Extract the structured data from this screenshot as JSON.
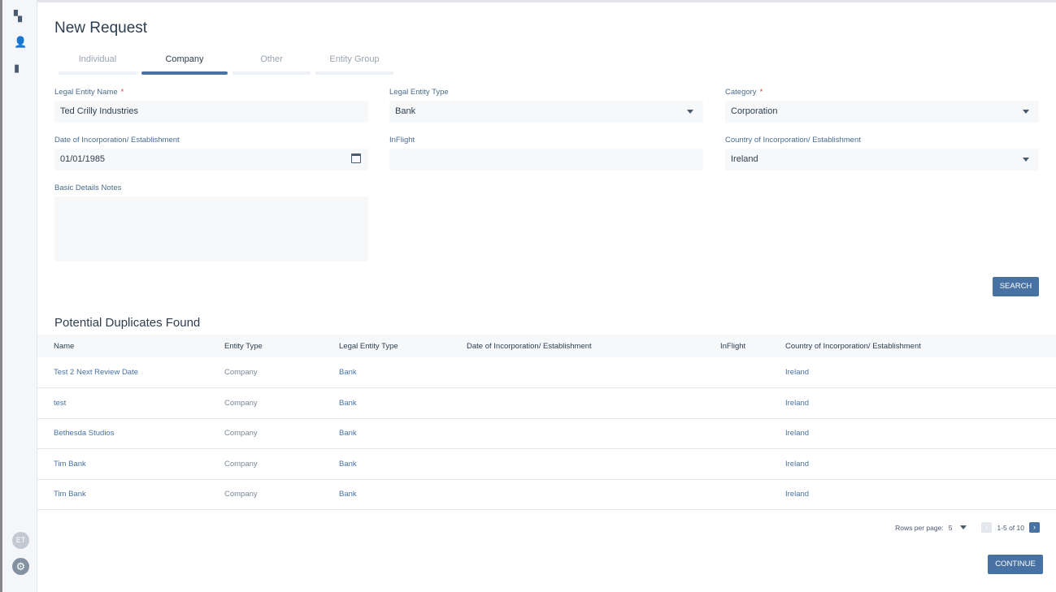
{
  "sidebar": {
    "items": [
      {
        "icon": "dashboard-icon",
        "glyph": "▚"
      },
      {
        "icon": "user-icon",
        "glyph": "👤"
      },
      {
        "icon": "bar-chart-icon",
        "glyph": "▮"
      }
    ],
    "avatar": "ET"
  },
  "title": "New Request",
  "tabs": [
    {
      "label": "Individual",
      "active": false
    },
    {
      "label": "Company",
      "active": true
    },
    {
      "label": "Other",
      "active": false
    },
    {
      "label": "Entity Group",
      "active": false
    }
  ],
  "form": {
    "legal_entity_name": {
      "label": "Legal Entity Name",
      "value": "Ted Crilly Industries",
      "required": "*"
    },
    "legal_entity_type": {
      "label": "Legal Entity Type",
      "value": "Bank"
    },
    "category": {
      "label": "Category",
      "value": "Corporation",
      "required": "*"
    },
    "date_of_incorporation": {
      "label": "Date of Incorporation/ Establishment",
      "value": "01/01/1985"
    },
    "inflight": {
      "label": "InFlight",
      "value": ""
    },
    "country": {
      "label": "Country of Incorporation/ Establishment",
      "value": "Ireland"
    },
    "notes": {
      "label": "Basic Details Notes",
      "value": ""
    }
  },
  "search_label": "SEARCH",
  "duplicates": {
    "title": "Potential Duplicates Found",
    "columns": [
      "Name",
      "Entity Type",
      "Legal Entity Type",
      "Date of Incorporation/ Establishment",
      "InFlight",
      "Country of Incorporation/ Establishment"
    ],
    "rows": [
      [
        "Test 2 Next Review Date",
        "Company",
        "Bank",
        "",
        "",
        "Ireland"
      ],
      [
        "test",
        "Company",
        "Bank",
        "",
        "",
        "Ireland"
      ],
      [
        "Bethesda Studios",
        "Company",
        "Bank",
        "",
        "",
        "Ireland"
      ],
      [
        "Tim Bank",
        "Company",
        "Bank",
        "",
        "",
        "Ireland"
      ],
      [
        "Tim Bank",
        "Company",
        "Bank",
        "",
        "",
        "Ireland"
      ]
    ]
  },
  "pagination": {
    "rows_per_page_label": "Rows per page:",
    "rows_per_page": "5",
    "range": "1-5 of 10"
  },
  "continue_label": "CONTINUE",
  "colors": {
    "accent": "#4872a3"
  }
}
